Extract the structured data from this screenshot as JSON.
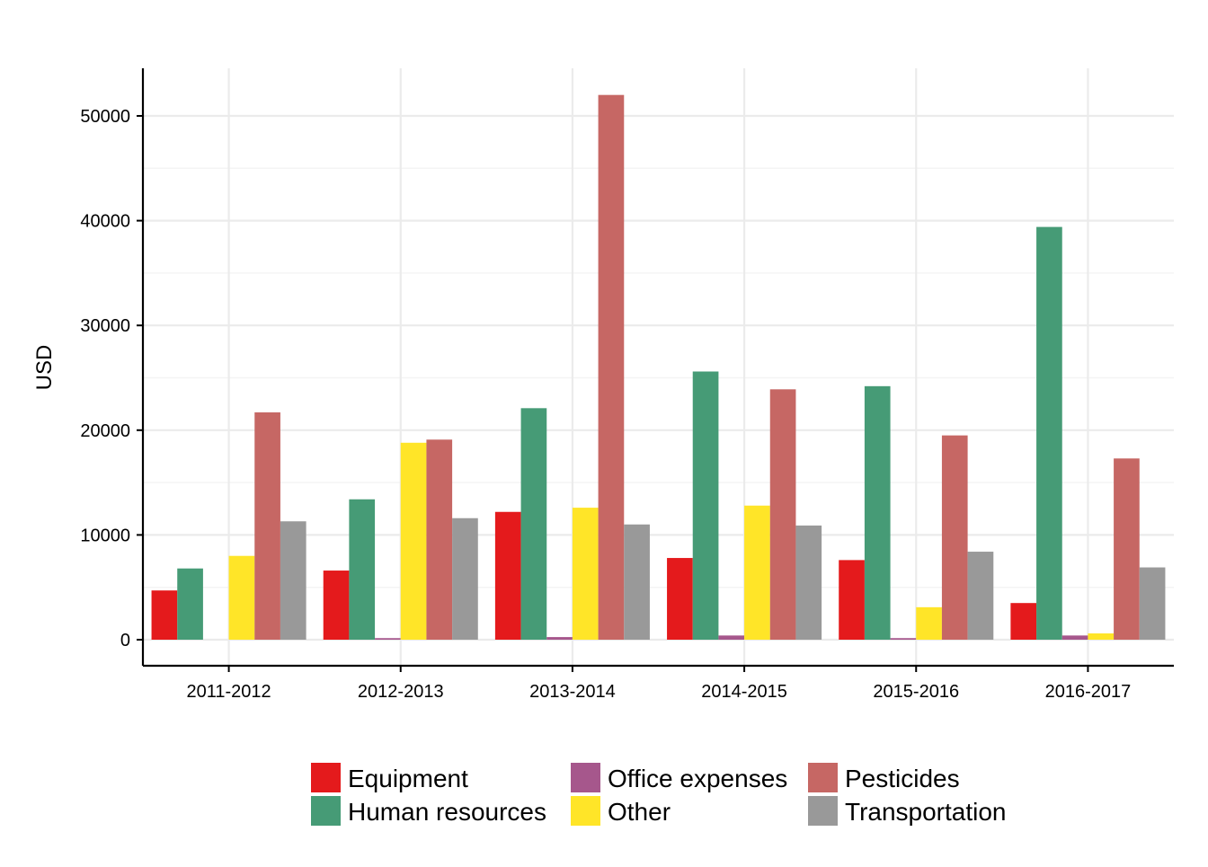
{
  "chart_data": {
    "type": "bar",
    "title": "",
    "xlabel": "",
    "ylabel": "USD",
    "categories": [
      "2011-2012",
      "2012-2013",
      "2013-2014",
      "2014-2015",
      "2015-2016",
      "2016-2017"
    ],
    "ylim": [
      -2500,
      54500
    ],
    "yticks": [
      0,
      10000,
      20000,
      30000,
      40000,
      50000
    ],
    "grid": true,
    "legend_position": "bottom",
    "series": [
      {
        "name": "Equipment",
        "color": "#e41a1c",
        "values": [
          4700,
          6600,
          12200,
          7800,
          7600,
          3500
        ]
      },
      {
        "name": "Human resources",
        "color": "#469b76",
        "values": [
          6800,
          13400,
          22100,
          25600,
          24200,
          39400
        ]
      },
      {
        "name": "Office expenses",
        "color": "#a6578c",
        "values": [
          0,
          150,
          250,
          400,
          150,
          400
        ]
      },
      {
        "name": "Other",
        "color": "#ffe528",
        "values": [
          8000,
          18800,
          12600,
          12800,
          3100,
          600
        ]
      },
      {
        "name": "Pesticides",
        "color": "#c66764",
        "values": [
          21700,
          19100,
          52000,
          23900,
          19500,
          17300
        ]
      },
      {
        "name": "Transportation",
        "color": "#999999",
        "values": [
          11300,
          11600,
          11000,
          10900,
          8400,
          6900
        ]
      }
    ],
    "legend_order": [
      "Equipment",
      "Human resources",
      "Office expenses",
      "Other",
      "Pesticides",
      "Transportation"
    ]
  }
}
